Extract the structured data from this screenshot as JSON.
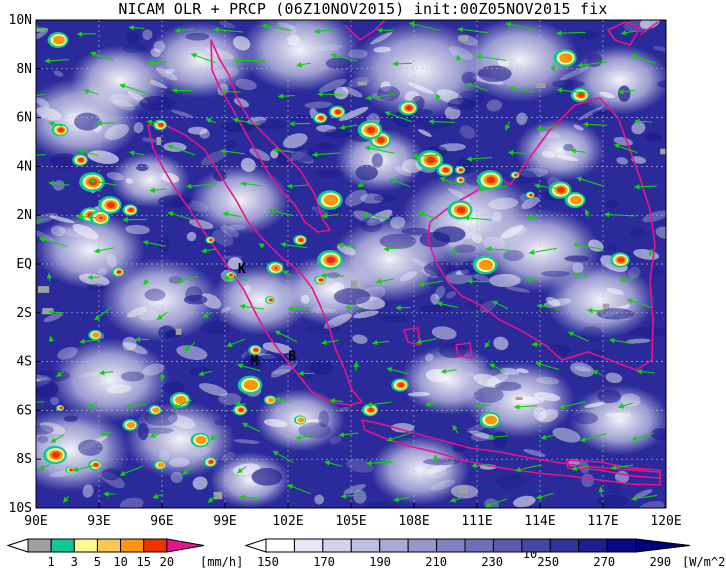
{
  "title": "NICAM OLR + PRCP (06Z10NOV2015) init:00Z05NOV2015 fix",
  "map": {
    "lon_labels": [
      "90E",
      "93E",
      "96E",
      "99E",
      "102E",
      "105E",
      "108E",
      "111E",
      "114E",
      "117E",
      "120E"
    ],
    "lat_labels": [
      "10N",
      "8N",
      "6N",
      "4N",
      "2N",
      "EQ",
      "2S",
      "4S",
      "6S",
      "8S",
      "10S"
    ],
    "place_markers": [
      {
        "label": "K",
        "lon": 99.8,
        "lat": -0.2
      },
      {
        "label": "M",
        "lon": 100.4,
        "lat": -4.0
      },
      {
        "label": "B",
        "lon": 102.2,
        "lat": -3.8
      }
    ],
    "vector_reference": {
      "label": "10"
    }
  },
  "legend_precip": {
    "ticks": [
      "1",
      "3",
      "5",
      "10",
      "15",
      "20"
    ],
    "unit": "[mm/h]",
    "colors": [
      "#a0a0a0",
      "#10c896",
      "#fafa96",
      "#fac850",
      "#fa9614",
      "#f03200",
      "#e6148c"
    ]
  },
  "legend_olr": {
    "ticks": [
      "150",
      "170",
      "190",
      "210",
      "230",
      "250",
      "270",
      "290"
    ],
    "unit": "[W/m^2]",
    "colors": [
      "#ffffff",
      "#e6e6f5",
      "#d2d2eb",
      "#bebee1",
      "#aaaad7",
      "#9696cd",
      "#8282c3",
      "#6e6eb9",
      "#5a5aaf",
      "#4646a5",
      "#32329b",
      "#1e1e91",
      "#0a0a87",
      "#00007d"
    ]
  },
  "colors": {
    "coast": "#e6148c",
    "wind": "#10d010",
    "grid": "#b4b4c8",
    "frame": "#000000"
  }
}
